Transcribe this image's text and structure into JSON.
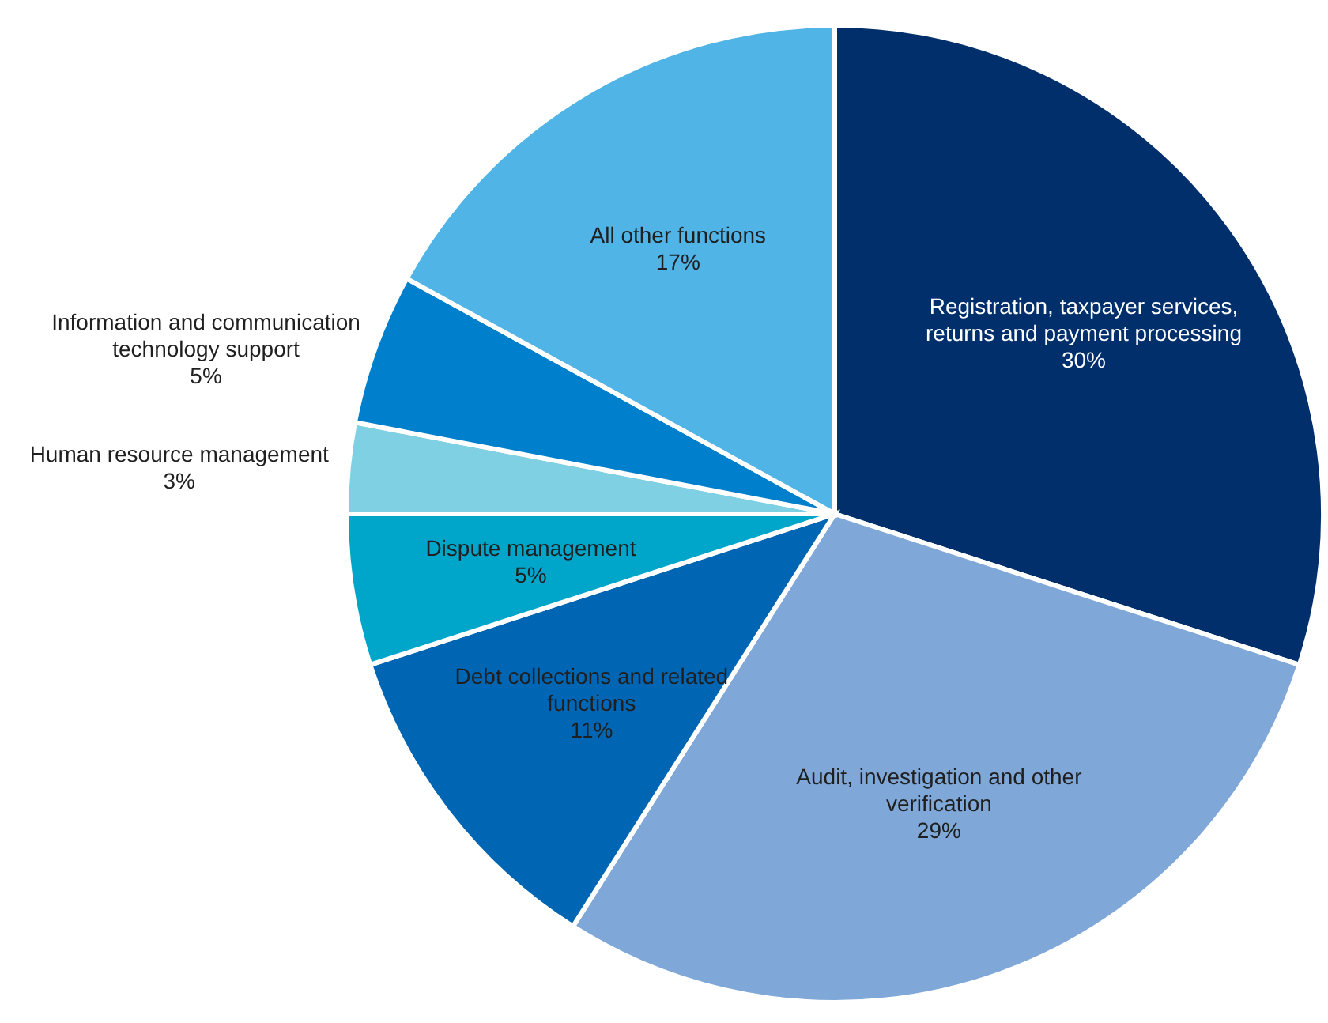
{
  "chart_data": {
    "type": "pie",
    "categories": [
      "Registration, taxpayer services, returns and payment processing",
      "Audit, investigation and other verification",
      "Debt collections and related functions",
      "Dispute management",
      "Human resource management",
      "Information and communication technology support",
      "All other functions"
    ],
    "values": [
      30,
      29,
      11,
      5,
      3,
      5,
      17
    ],
    "value_labels": [
      "30%",
      "29%",
      "11%",
      "5%",
      "3%",
      "5%",
      "17%"
    ],
    "colors": [
      "#002f6b",
      "#7fa7d8",
      "#0066b3",
      "#00a6c9",
      "#80d0e3",
      "#0080cc",
      "#50b4e6"
    ]
  }
}
